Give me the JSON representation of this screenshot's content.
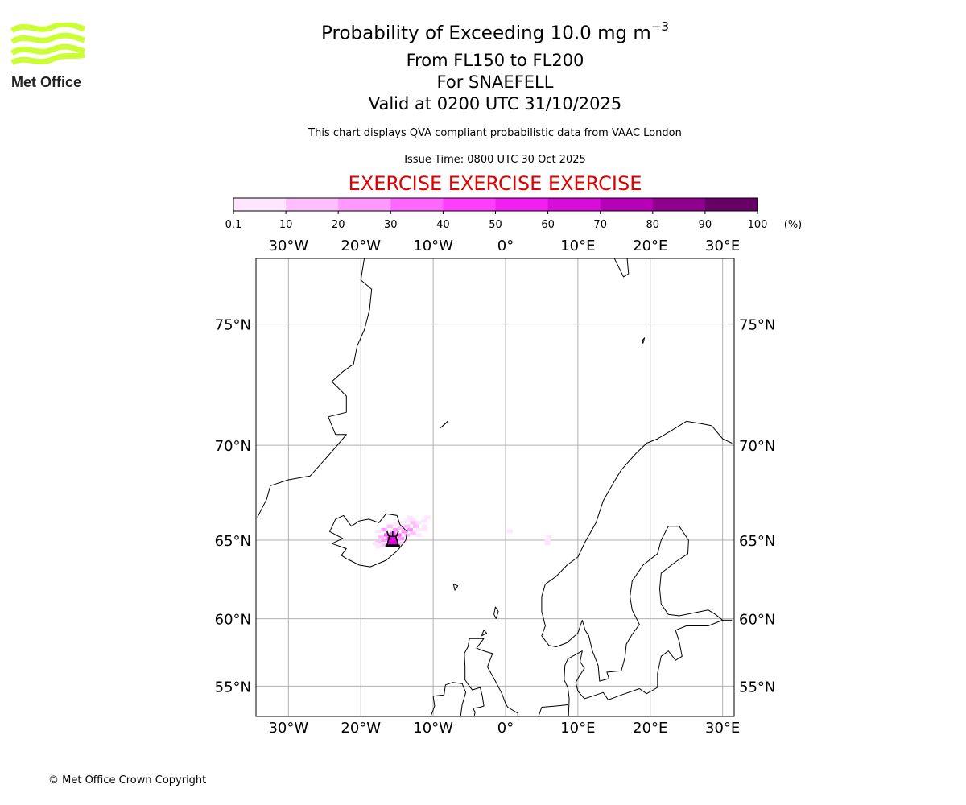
{
  "header": {
    "title": "Probability of Exceeding 10.0 mg m",
    "title_unit_exponent": "−3",
    "level_range": "From FL150 to FL200",
    "volcano": "For SNAEFELL",
    "valid_time": "Valid at 0200 UTC 31/10/2025",
    "description": "This chart displays QVA compliant probabilistic data from VAAC London",
    "issue_time": "Issue Time: 0800 UTC 30 Oct 2025",
    "exercise_banner": "EXERCISE EXERCISE EXERCISE"
  },
  "logo": {
    "text": "Met Office",
    "color": "#ccff33"
  },
  "footer": {
    "copyright": "© Met Office Crown Copyright"
  },
  "colors": {
    "exercise": "#e00000",
    "grid": "#b0b0b0",
    "coast": "#000000"
  },
  "colorbar": {
    "ticks": [
      "0.1",
      "10",
      "20",
      "30",
      "40",
      "50",
      "60",
      "70",
      "80",
      "90",
      "100"
    ],
    "unit": "(%)",
    "colors": [
      "#ffe6ff",
      "#ffbfff",
      "#ff99ff",
      "#ff66ff",
      "#ff3dff",
      "#f21ff2",
      "#d90dd9",
      "#b800b8",
      "#8f008f",
      "#660066"
    ]
  },
  "chart_data": {
    "type": "heatmap",
    "projection": "mercator",
    "lon_range": [
      -34.3,
      31.3
    ],
    "lat_range": [
      52.6,
      77.2
    ],
    "grid": true,
    "lon_ticks": [
      -30,
      -20,
      -10,
      0,
      10,
      20,
      30
    ],
    "lon_tick_labels": [
      "30°W",
      "20°W",
      "10°W",
      "0°",
      "10°E",
      "20°E",
      "30°E"
    ],
    "lat_ticks": [
      75,
      70,
      65,
      60,
      55
    ],
    "lat_tick_labels": [
      "75°N",
      "70°N",
      "65°N",
      "60°N",
      "55°N"
    ],
    "volcano": {
      "name": "SNAEFELL",
      "lon": -15.6,
      "lat": 64.95,
      "icon": "volcano-icon"
    },
    "cell_size_deg": [
      0.8,
      0.2
    ],
    "cells": [
      [
        -15.6,
        64.9,
        60
      ],
      [
        -15.2,
        65.0,
        50
      ],
      [
        -16.0,
        65.1,
        40
      ],
      [
        -15.6,
        65.1,
        50
      ],
      [
        -16.4,
        65.3,
        30
      ],
      [
        -15.6,
        65.4,
        30
      ],
      [
        -14.8,
        65.3,
        30
      ],
      [
        -14.0,
        65.5,
        20
      ],
      [
        -13.2,
        65.6,
        20
      ],
      [
        -12.4,
        65.8,
        10
      ],
      [
        -16.8,
        65.0,
        20
      ],
      [
        -17.2,
        65.2,
        10
      ],
      [
        -17.6,
        64.9,
        10
      ],
      [
        -16.8,
        65.6,
        20
      ],
      [
        -15.2,
        65.6,
        20
      ],
      [
        -14.4,
        65.7,
        10
      ],
      [
        -13.6,
        65.8,
        10
      ],
      [
        -12.8,
        66.0,
        10
      ],
      [
        -14.4,
        65.1,
        20
      ],
      [
        -13.6,
        65.3,
        10
      ],
      [
        -12.8,
        65.4,
        10
      ],
      [
        -12.0,
        65.6,
        0.1
      ],
      [
        -18.0,
        64.8,
        0.1
      ],
      [
        -17.6,
        64.6,
        0.1
      ],
      [
        -16.8,
        64.7,
        10
      ],
      [
        -14.8,
        64.8,
        10
      ],
      [
        -14.0,
        64.9,
        0.1
      ],
      [
        -17.6,
        65.5,
        0.1
      ],
      [
        -16.0,
        65.8,
        10
      ],
      [
        -15.2,
        65.9,
        0.1
      ],
      [
        -14.4,
        66.0,
        0.1
      ],
      [
        -13.6,
        66.1,
        0.1
      ],
      [
        -12.8,
        66.2,
        0.1
      ],
      [
        -12.0,
        66.0,
        0.1
      ],
      [
        -11.2,
        66.1,
        0.1
      ],
      [
        -10.8,
        66.3,
        0.1
      ],
      [
        -12.0,
        65.3,
        0.1
      ],
      [
        -11.2,
        65.6,
        0.1
      ],
      [
        -11.2,
        65.8,
        0.1
      ],
      [
        -13.2,
        66.3,
        0.1
      ],
      [
        0.6,
        65.5,
        0.1
      ],
      [
        5.8,
        64.8,
        0.1
      ],
      [
        5.8,
        65.0,
        0.1
      ],
      [
        6.0,
        65.2,
        0.1
      ]
    ],
    "coastlines": {
      "iceland": [
        [
          -22.0,
          63.9
        ],
        [
          -22.7,
          64.1
        ],
        [
          -22.0,
          64.5
        ],
        [
          -24.0,
          64.8
        ],
        [
          -22.5,
          65.1
        ],
        [
          -24.3,
          65.5
        ],
        [
          -23.5,
          66.2
        ],
        [
          -22.4,
          66.4
        ],
        [
          -21.3,
          65.8
        ],
        [
          -20.2,
          66.1
        ],
        [
          -18.9,
          66.2
        ],
        [
          -17.5,
          66.0
        ],
        [
          -16.5,
          66.5
        ],
        [
          -15.0,
          66.4
        ],
        [
          -14.6,
          65.9
        ],
        [
          -13.6,
          65.5
        ],
        [
          -13.8,
          65.0
        ],
        [
          -14.9,
          64.4
        ],
        [
          -16.5,
          63.8
        ],
        [
          -18.7,
          63.4
        ],
        [
          -20.2,
          63.5
        ],
        [
          -21.5,
          63.8
        ],
        [
          -22.0,
          63.9
        ]
      ],
      "greenland": [
        [
          -34.3,
          66.3
        ],
        [
          -33.0,
          67.3
        ],
        [
          -32.5,
          68.0
        ],
        [
          -30.0,
          68.3
        ],
        [
          -27.0,
          68.5
        ],
        [
          -25.0,
          69.3
        ],
        [
          -23.0,
          70.1
        ],
        [
          -22.0,
          70.5
        ],
        [
          -23.5,
          70.5
        ],
        [
          -24.5,
          71.3
        ],
        [
          -22.0,
          71.5
        ],
        [
          -22.0,
          72.2
        ],
        [
          -24.0,
          72.8
        ],
        [
          -22.5,
          73.2
        ],
        [
          -21.0,
          73.5
        ],
        [
          -20.5,
          74.2
        ],
        [
          -19.5,
          74.8
        ],
        [
          -18.8,
          75.5
        ],
        [
          -18.5,
          76.2
        ],
        [
          -20.0,
          76.5
        ],
        [
          -19.5,
          77.2
        ]
      ],
      "jan_mayen": [
        [
          -9.0,
          70.8
        ],
        [
          -8.0,
          71.1
        ],
        [
          -8.3,
          71.0
        ],
        [
          -9.0,
          70.8
        ]
      ],
      "svalbard": [
        [
          15.0,
          77.2
        ],
        [
          16.3,
          76.6
        ],
        [
          17.0,
          76.7
        ],
        [
          16.8,
          77.2
        ]
      ],
      "bear_island": [
        [
          18.9,
          74.4
        ],
        [
          19.2,
          74.5
        ],
        [
          19.0,
          74.3
        ],
        [
          18.9,
          74.4
        ]
      ],
      "scandinavia": [
        [
          31.3,
          70.1
        ],
        [
          30.0,
          70.3
        ],
        [
          28.5,
          70.9
        ],
        [
          27.0,
          71.0
        ],
        [
          25.0,
          71.1
        ],
        [
          23.0,
          70.7
        ],
        [
          21.0,
          70.3
        ],
        [
          19.5,
          70.1
        ],
        [
          18.0,
          69.6
        ],
        [
          16.0,
          68.8
        ],
        [
          15.0,
          68.2
        ],
        [
          13.5,
          67.2
        ],
        [
          12.5,
          66.0
        ],
        [
          11.0,
          64.9
        ],
        [
          10.0,
          64.0
        ],
        [
          8.5,
          63.5
        ],
        [
          7.0,
          62.8
        ],
        [
          5.5,
          62.3
        ],
        [
          5.0,
          61.5
        ],
        [
          5.0,
          60.5
        ],
        [
          5.5,
          59.5
        ],
        [
          5.0,
          58.8
        ],
        [
          6.0,
          58.1
        ],
        [
          7.0,
          58.0
        ],
        [
          8.5,
          58.3
        ],
        [
          10.0,
          59.0
        ],
        [
          10.6,
          59.9
        ],
        [
          11.0,
          59.2
        ],
        [
          11.5,
          58.8
        ],
        [
          12.0,
          57.7
        ],
        [
          12.8,
          56.6
        ],
        [
          13.0,
          55.4
        ],
        [
          14.3,
          55.6
        ],
        [
          14.0,
          56.1
        ],
        [
          16.0,
          56.2
        ],
        [
          16.5,
          57.2
        ],
        [
          16.7,
          58.2
        ],
        [
          17.5,
          58.9
        ],
        [
          18.5,
          59.6
        ],
        [
          17.5,
          60.6
        ],
        [
          17.2,
          61.5
        ],
        [
          17.5,
          62.5
        ],
        [
          19.0,
          63.5
        ],
        [
          21.0,
          64.2
        ],
        [
          21.5,
          65.0
        ],
        [
          22.5,
          65.8
        ],
        [
          24.0,
          65.8
        ],
        [
          25.3,
          65.0
        ],
        [
          25.2,
          64.2
        ],
        [
          23.5,
          63.7
        ],
        [
          21.5,
          63.0
        ],
        [
          21.3,
          62.0
        ],
        [
          21.5,
          61.0
        ],
        [
          22.5,
          60.3
        ],
        [
          24.0,
          60.2
        ],
        [
          26.0,
          60.4
        ],
        [
          28.0,
          60.6
        ],
        [
          29.0,
          60.3
        ],
        [
          30.0,
          59.9
        ],
        [
          31.3,
          59.9
        ]
      ],
      "denmark": [
        [
          8.7,
          52.6
        ],
        [
          8.8,
          54.0
        ],
        [
          8.6,
          54.9
        ],
        [
          8.1,
          55.5
        ],
        [
          8.2,
          56.6
        ],
        [
          8.6,
          57.1
        ],
        [
          10.6,
          57.7
        ],
        [
          10.3,
          56.9
        ],
        [
          10.9,
          56.4
        ],
        [
          10.2,
          55.8
        ],
        [
          9.7,
          55.3
        ],
        [
          10.0,
          54.6
        ],
        [
          10.9,
          54.0
        ],
        [
          12.0,
          54.2
        ],
        [
          13.5,
          54.5
        ],
        [
          14.2,
          53.9
        ],
        [
          16.0,
          54.3
        ],
        [
          18.5,
          54.8
        ],
        [
          19.5,
          54.4
        ],
        [
          21.0,
          54.9
        ],
        [
          21.0,
          56.0
        ],
        [
          21.5,
          57.3
        ],
        [
          22.5,
          57.7
        ],
        [
          23.5,
          57.0
        ],
        [
          24.4,
          57.3
        ],
        [
          24.0,
          58.4
        ],
        [
          23.5,
          59.2
        ],
        [
          25.0,
          59.5
        ],
        [
          28.0,
          59.5
        ],
        [
          30.0,
          59.9
        ]
      ],
      "netherlands": [
        [
          8.6,
          53.5
        ],
        [
          7.0,
          53.4
        ],
        [
          5.0,
          53.3
        ],
        [
          4.6,
          52.6
        ]
      ],
      "britain": [
        [
          1.7,
          52.6
        ],
        [
          1.7,
          52.8
        ],
        [
          0.3,
          53.3
        ],
        [
          0.0,
          53.6
        ],
        [
          -0.5,
          54.4
        ],
        [
          -1.5,
          55.5
        ],
        [
          -2.0,
          56.0
        ],
        [
          -2.5,
          56.5
        ],
        [
          -1.8,
          57.5
        ],
        [
          -3.0,
          57.7
        ],
        [
          -4.0,
          57.9
        ],
        [
          -3.0,
          58.6
        ],
        [
          -5.0,
          58.6
        ],
        [
          -5.2,
          58.0
        ],
        [
          -5.7,
          57.5
        ],
        [
          -5.6,
          56.5
        ],
        [
          -5.6,
          55.5
        ],
        [
          -5.0,
          55.0
        ],
        [
          -4.6,
          54.7
        ],
        [
          -3.5,
          54.9
        ],
        [
          -3.2,
          54.2
        ],
        [
          -3.0,
          53.4
        ],
        [
          -3.5,
          53.3
        ],
        [
          -4.5,
          53.2
        ],
        [
          -4.2,
          52.9
        ],
        [
          -4.3,
          52.6
        ]
      ],
      "ireland": [
        [
          -6.2,
          52.6
        ],
        [
          -6.0,
          53.5
        ],
        [
          -5.5,
          54.5
        ],
        [
          -6.0,
          55.2
        ],
        [
          -7.3,
          55.3
        ],
        [
          -8.3,
          55.1
        ],
        [
          -8.5,
          54.3
        ],
        [
          -10.0,
          54.2
        ],
        [
          -9.8,
          53.4
        ],
        [
          -10.3,
          52.6
        ]
      ],
      "shetland": [
        [
          -1.3,
          60.0
        ],
        [
          -1.0,
          60.5
        ],
        [
          -1.4,
          60.8
        ],
        [
          -1.6,
          60.3
        ],
        [
          -1.3,
          60.0
        ]
      ],
      "orkney": [
        [
          -3.3,
          58.8
        ],
        [
          -2.6,
          59.0
        ],
        [
          -3.0,
          59.2
        ],
        [
          -3.3,
          58.8
        ]
      ],
      "faroe": [
        [
          -7.0,
          61.9
        ],
        [
          -6.6,
          62.2
        ],
        [
          -7.2,
          62.3
        ],
        [
          -7.0,
          61.9
        ]
      ]
    }
  }
}
